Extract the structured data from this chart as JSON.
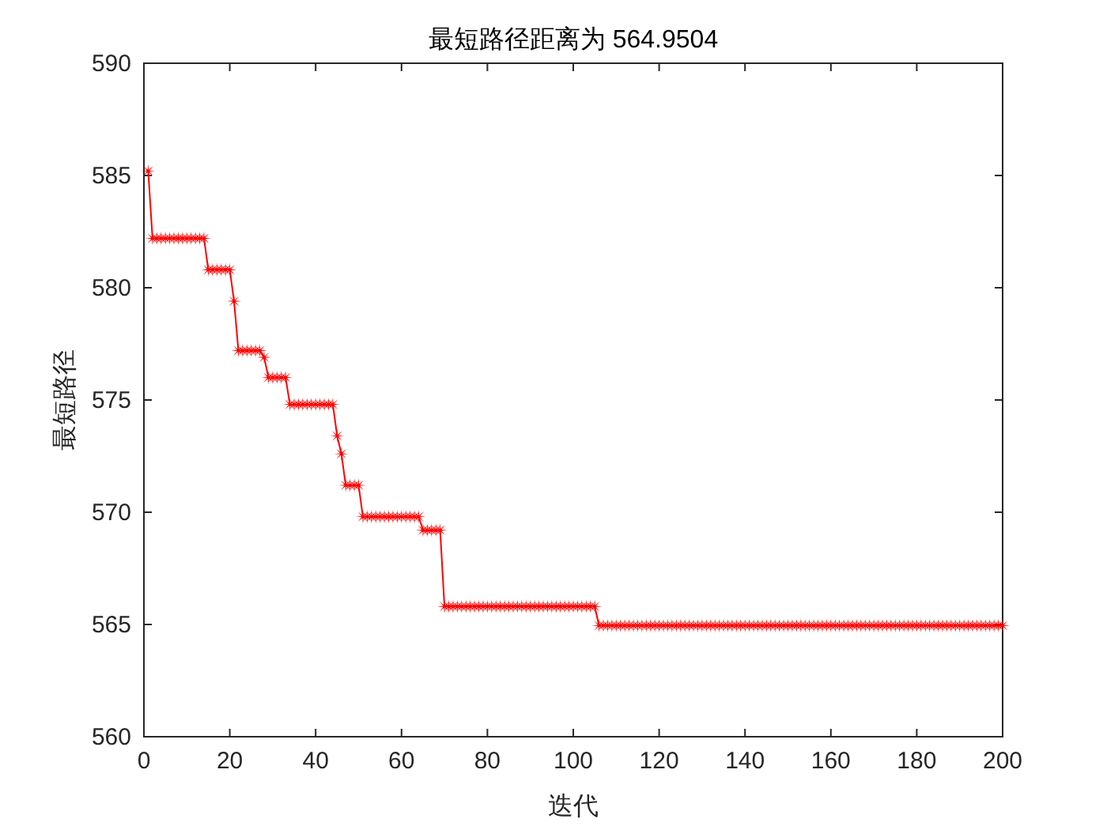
{
  "chart_data": {
    "type": "line",
    "title": "最短路径距离为 564.9504",
    "xlabel": "迭代",
    "ylabel": "最短路径",
    "xlim": [
      0,
      200
    ],
    "ylim": [
      560,
      590
    ],
    "xticks": [
      0,
      20,
      40,
      60,
      80,
      100,
      120,
      140,
      160,
      180,
      200
    ],
    "yticks": [
      560,
      565,
      570,
      575,
      580,
      585,
      590
    ],
    "grid": false,
    "marker": "star",
    "line_style": "solid",
    "series": [
      {
        "color": "#ff0000",
        "x": [
          1,
          2,
          3,
          4,
          5,
          6,
          7,
          8,
          9,
          10,
          11,
          12,
          13,
          14,
          15,
          16,
          17,
          18,
          19,
          20,
          21,
          22,
          23,
          24,
          25,
          26,
          27,
          28,
          29,
          30,
          31,
          32,
          33,
          34,
          35,
          36,
          37,
          38,
          39,
          40,
          41,
          42,
          43,
          44,
          45,
          46,
          47,
          48,
          49,
          50,
          51,
          52,
          53,
          54,
          55,
          56,
          57,
          58,
          59,
          60,
          61,
          62,
          63,
          64,
          65,
          66,
          67,
          68,
          69,
          70,
          71,
          72,
          73,
          74,
          75,
          76,
          77,
          78,
          79,
          80,
          81,
          82,
          83,
          84,
          85,
          86,
          87,
          88,
          89,
          90,
          91,
          92,
          93,
          94,
          95,
          96,
          97,
          98,
          99,
          100,
          101,
          102,
          103,
          104,
          105,
          106,
          107,
          108,
          109,
          110,
          111,
          112,
          113,
          114,
          115,
          116,
          117,
          118,
          119,
          120,
          121,
          122,
          123,
          124,
          125,
          126,
          127,
          128,
          129,
          130,
          131,
          132,
          133,
          134,
          135,
          136,
          137,
          138,
          139,
          140,
          141,
          142,
          143,
          144,
          145,
          146,
          147,
          148,
          149,
          150,
          151,
          152,
          153,
          154,
          155,
          156,
          157,
          158,
          159,
          160,
          161,
          162,
          163,
          164,
          165,
          166,
          167,
          168,
          169,
          170,
          171,
          172,
          173,
          174,
          175,
          176,
          177,
          178,
          179,
          180,
          181,
          182,
          183,
          184,
          185,
          186,
          187,
          188,
          189,
          190,
          191,
          192,
          193,
          194,
          195,
          196,
          197,
          198,
          199,
          200
        ],
        "values": [
          585.2,
          582.2,
          582.2,
          582.2,
          582.2,
          582.2,
          582.2,
          582.2,
          582.2,
          582.2,
          582.2,
          582.2,
          582.2,
          582.2,
          580.8,
          580.8,
          580.8,
          580.8,
          580.8,
          580.8,
          579.4,
          577.2,
          577.2,
          577.2,
          577.2,
          577.2,
          577.2,
          576.9,
          576.0,
          576.0,
          576.0,
          576.0,
          576.0,
          574.8,
          574.8,
          574.8,
          574.8,
          574.8,
          574.8,
          574.8,
          574.8,
          574.8,
          574.8,
          574.8,
          573.4,
          572.6,
          571.2,
          571.2,
          571.2,
          571.2,
          569.8,
          569.8,
          569.8,
          569.8,
          569.8,
          569.8,
          569.8,
          569.8,
          569.8,
          569.8,
          569.8,
          569.8,
          569.8,
          569.8,
          569.2,
          569.2,
          569.2,
          569.2,
          569.2,
          565.8,
          565.8,
          565.8,
          565.8,
          565.8,
          565.8,
          565.8,
          565.8,
          565.8,
          565.8,
          565.8,
          565.8,
          565.8,
          565.8,
          565.8,
          565.8,
          565.8,
          565.8,
          565.8,
          565.8,
          565.8,
          565.8,
          565.8,
          565.8,
          565.8,
          565.8,
          565.8,
          565.8,
          565.8,
          565.8,
          565.8,
          565.8,
          565.8,
          565.8,
          565.8,
          565.8,
          564.95,
          564.95,
          564.95,
          564.95,
          564.95,
          564.95,
          564.95,
          564.95,
          564.95,
          564.95,
          564.95,
          564.95,
          564.95,
          564.95,
          564.95,
          564.95,
          564.95,
          564.95,
          564.95,
          564.95,
          564.95,
          564.95,
          564.95,
          564.95,
          564.95,
          564.95,
          564.95,
          564.95,
          564.95,
          564.95,
          564.95,
          564.95,
          564.95,
          564.95,
          564.95,
          564.95,
          564.95,
          564.95,
          564.95,
          564.95,
          564.95,
          564.95,
          564.95,
          564.95,
          564.95,
          564.95,
          564.95,
          564.95,
          564.95,
          564.95,
          564.95,
          564.95,
          564.95,
          564.95,
          564.95,
          564.95,
          564.95,
          564.95,
          564.95,
          564.95,
          564.95,
          564.95,
          564.95,
          564.95,
          564.95,
          564.95,
          564.95,
          564.95,
          564.95,
          564.95,
          564.95,
          564.95,
          564.95,
          564.95,
          564.95,
          564.95,
          564.95,
          564.95,
          564.95,
          564.95,
          564.95,
          564.95,
          564.95,
          564.95,
          564.95,
          564.95,
          564.95,
          564.95,
          564.95,
          564.95,
          564.95,
          564.95,
          564.95,
          564.95,
          564.95
        ]
      }
    ]
  }
}
